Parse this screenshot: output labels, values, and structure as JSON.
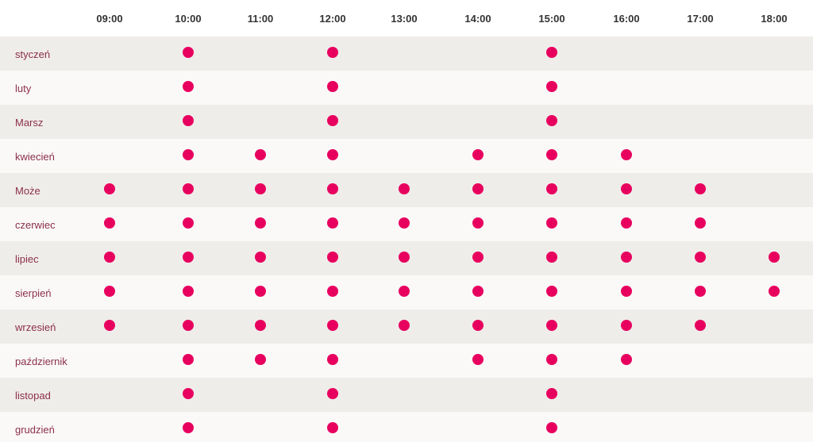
{
  "colors": {
    "dot": "#e8005f",
    "month_text": "#8c2f4b",
    "row_odd": "#efedea",
    "row_even": "#faf9f8"
  },
  "hours": [
    "09:00",
    "10:00",
    "11:00",
    "12:00",
    "13:00",
    "14:00",
    "15:00",
    "16:00",
    "17:00",
    "18:00"
  ],
  "months": [
    {
      "label": "styczeń",
      "slots": [
        "10:00",
        "12:00",
        "15:00"
      ]
    },
    {
      "label": "luty",
      "slots": [
        "10:00",
        "12:00",
        "15:00"
      ]
    },
    {
      "label": "Marsz",
      "slots": [
        "10:00",
        "12:00",
        "15:00"
      ]
    },
    {
      "label": "kwiecień",
      "slots": [
        "10:00",
        "11:00",
        "12:00",
        "14:00",
        "15:00",
        "16:00"
      ]
    },
    {
      "label": "Może",
      "slots": [
        "09:00",
        "10:00",
        "11:00",
        "12:00",
        "13:00",
        "14:00",
        "15:00",
        "16:00",
        "17:00"
      ]
    },
    {
      "label": "czerwiec",
      "slots": [
        "09:00",
        "10:00",
        "11:00",
        "12:00",
        "13:00",
        "14:00",
        "15:00",
        "16:00",
        "17:00"
      ]
    },
    {
      "label": "lipiec",
      "slots": [
        "09:00",
        "10:00",
        "11:00",
        "12:00",
        "13:00",
        "14:00",
        "15:00",
        "16:00",
        "17:00",
        "18:00"
      ]
    },
    {
      "label": "sierpień",
      "slots": [
        "09:00",
        "10:00",
        "11:00",
        "12:00",
        "13:00",
        "14:00",
        "15:00",
        "16:00",
        "17:00",
        "18:00"
      ]
    },
    {
      "label": "wrzesień",
      "slots": [
        "09:00",
        "10:00",
        "11:00",
        "12:00",
        "13:00",
        "14:00",
        "15:00",
        "16:00",
        "17:00"
      ]
    },
    {
      "label": "październik",
      "slots": [
        "10:00",
        "11:00",
        "12:00",
        "14:00",
        "15:00",
        "16:00"
      ]
    },
    {
      "label": "listopad",
      "slots": [
        "10:00",
        "12:00",
        "15:00"
      ]
    },
    {
      "label": "grudzień",
      "slots": [
        "10:00",
        "12:00",
        "15:00"
      ]
    }
  ]
}
